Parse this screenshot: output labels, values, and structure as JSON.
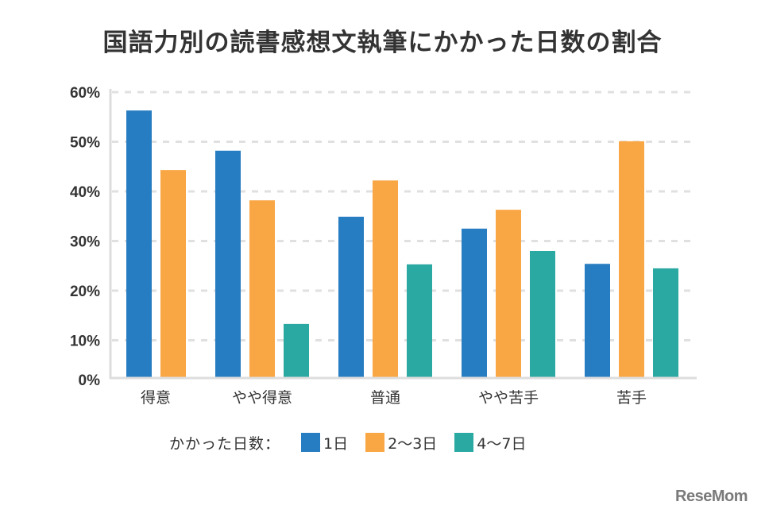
{
  "chart_data": {
    "type": "bar",
    "title": "国語力別の読書感想文執筆にかかった日数の割合",
    "xlabel": "",
    "ylabel": "",
    "categories": [
      "得意",
      "やや得意",
      "普通",
      "やや苦手",
      "苦手"
    ],
    "series": [
      {
        "name": "1日",
        "color": "#277DC1",
        "values": [
          56.3,
          48.2,
          34.9,
          32.5,
          25.4
        ]
      },
      {
        "name": "2〜3日",
        "color": "#F9A644",
        "values": [
          44.3,
          38.2,
          42.2,
          36.3,
          50.1
        ]
      },
      {
        "name": "4〜7日",
        "color": "#2AA8A2",
        "values": [
          0,
          13.3,
          25.3,
          28.0,
          24.5
        ]
      }
    ],
    "ylim": [
      0,
      60
    ],
    "yticks": [
      "0%",
      "10%",
      "20%",
      "30%",
      "40%",
      "50%",
      "60%"
    ],
    "grid": true,
    "legend_title": "かかった日数：",
    "legend_position": "bottom"
  },
  "watermark": "ReseMom"
}
